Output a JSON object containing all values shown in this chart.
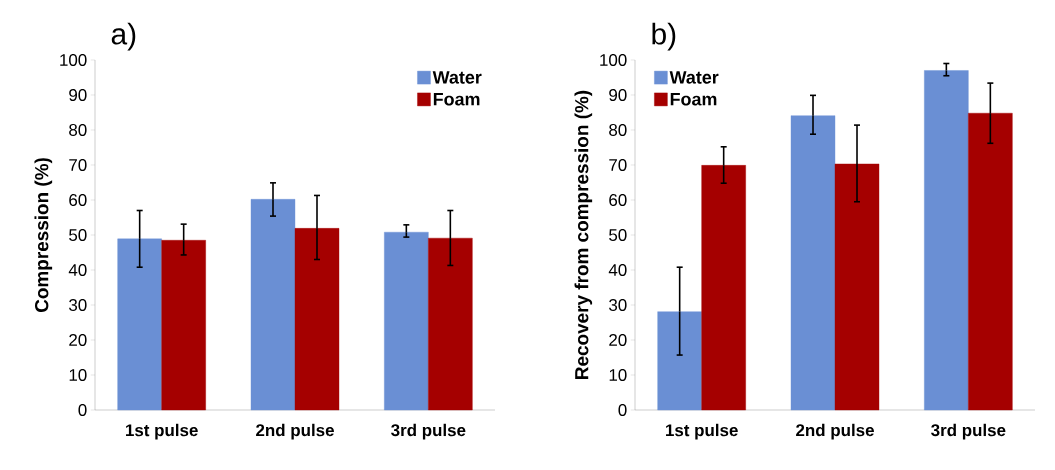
{
  "chart_data": [
    {
      "type": "bar",
      "title": "a)",
      "ylabel": "Compression (%)",
      "categories": [
        "1st pulse",
        "2nd pulse",
        "3rd pulse"
      ],
      "ylim": [
        0,
        100
      ],
      "yticks": [
        0,
        10,
        20,
        30,
        40,
        50,
        60,
        70,
        80,
        90,
        100
      ],
      "grid": false,
      "legend": "top right",
      "series": [
        {
          "name": "Water",
          "color": "#6a8fd4",
          "values": [
            48.9,
            60.2,
            50.8
          ],
          "errors": [
            [
              40.8,
              57.0
            ],
            [
              55.4,
              64.9
            ],
            [
              49.4,
              52.9
            ]
          ]
        },
        {
          "name": "Foam",
          "color": "#a50000",
          "values": [
            48.5,
            51.9,
            49.1
          ],
          "errors": [
            [
              44.3,
              53.1
            ],
            [
              43.0,
              61.3
            ],
            [
              41.3,
              57.0
            ]
          ]
        }
      ]
    },
    {
      "type": "bar",
      "title": "b)",
      "ylabel": "Recovery from compression (%)",
      "categories": [
        "1st pulse",
        "2nd pulse",
        "3rd pulse"
      ],
      "ylim": [
        0,
        100
      ],
      "yticks": [
        0,
        10,
        20,
        30,
        40,
        50,
        60,
        70,
        80,
        90,
        100
      ],
      "grid": false,
      "legend": "top left",
      "series": [
        {
          "name": "Water",
          "color": "#6a8fd4",
          "values": [
            28.1,
            84.1,
            97.0
          ],
          "errors": [
            [
              15.7,
              40.8
            ],
            [
              78.8,
              89.9
            ],
            [
              95.5,
              99.0
            ]
          ]
        },
        {
          "name": "Foam",
          "color": "#a50000",
          "values": [
            69.9,
            70.3,
            84.8
          ],
          "errors": [
            [
              64.8,
              75.2
            ],
            [
              59.5,
              81.4
            ],
            [
              76.2,
              93.4
            ]
          ]
        }
      ]
    }
  ]
}
